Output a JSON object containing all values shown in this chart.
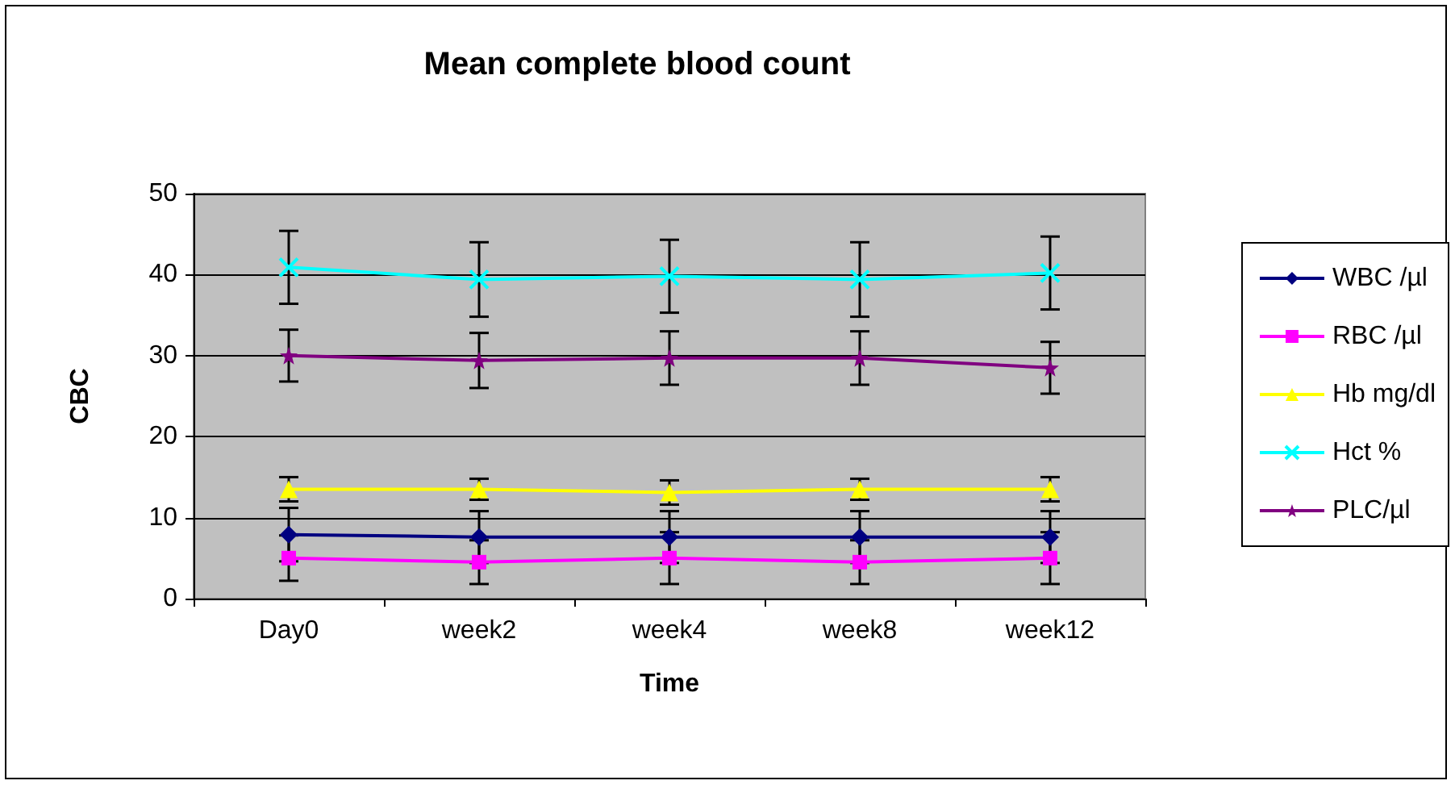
{
  "chart_data": {
    "type": "line",
    "title": "Mean complete blood count",
    "xlabel": "Time",
    "ylabel": "CBC",
    "categories": [
      "Day0",
      "week2",
      "week4",
      "week8",
      "week12"
    ],
    "series": [
      {
        "name": "WBC /µl",
        "color": "#000080",
        "marker": "diamond",
        "values": [
          7.9,
          7.6,
          7.6,
          7.6,
          7.6
        ],
        "errors": [
          3.3,
          3.2,
          3.2,
          3.2,
          3.2
        ]
      },
      {
        "name": "RBC /µl",
        "color": "#ff00ff",
        "marker": "square",
        "values": [
          5.0,
          4.5,
          5.0,
          4.5,
          5.0
        ],
        "errors": [
          2.8,
          2.7,
          3.2,
          2.7,
          3.2
        ]
      },
      {
        "name": "Hb mg/dl",
        "color": "#ffff00",
        "marker": "triangle",
        "values": [
          13.5,
          13.5,
          13.1,
          13.5,
          13.5
        ],
        "errors": [
          1.5,
          1.3,
          1.5,
          1.3,
          1.5
        ]
      },
      {
        "name": "Hct %",
        "color": "#00ffff",
        "marker": "cross",
        "values": [
          40.9,
          39.4,
          39.8,
          39.4,
          40.2
        ],
        "errors": [
          4.5,
          4.6,
          4.5,
          4.6,
          4.5
        ]
      },
      {
        "name": "PLC/µl",
        "color": "#800080",
        "marker": "star",
        "values": [
          30.0,
          29.4,
          29.7,
          29.7,
          28.5
        ],
        "errors": [
          3.2,
          3.4,
          3.3,
          3.3,
          3.2
        ]
      }
    ],
    "ylim": [
      0,
      50
    ],
    "yticks": [
      0,
      10,
      20,
      30,
      40,
      50
    ],
    "grid": "y",
    "legend": "right"
  }
}
